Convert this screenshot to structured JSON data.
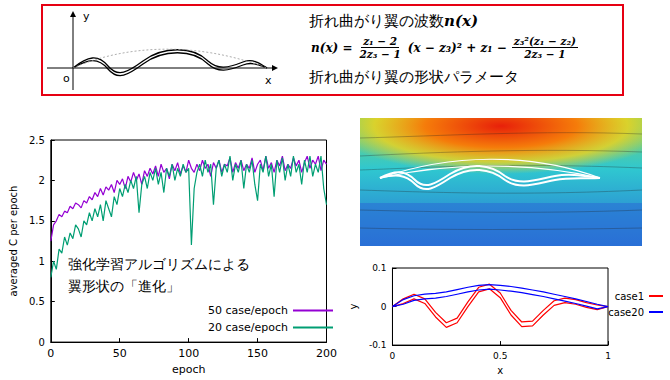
{
  "header_box": {
    "sketch": {
      "y_label": "y",
      "x_label": "x",
      "origin_label": "o"
    },
    "heading": "折れ曲がり翼の波数",
    "heading_symbol": "n(x)",
    "formula": {
      "lhs": "n(x) =",
      "parts": [
        {
          "num": "z₁ − 2",
          "den": "2z₃ − 1"
        },
        {
          "text": "(x − z₃)² + z₁ −"
        },
        {
          "num": "z₃²(z₁ − z₂)",
          "den": "2z₃ − 1"
        }
      ]
    },
    "caption": "折れ曲がり翼の形状パラメータ"
  },
  "chart_data": [
    {
      "type": "line",
      "x_label": "epoch",
      "y_label": "averaged C per epoch",
      "annotation": [
        "強化学習アルゴリズムによる",
        "翼形状の「進化」"
      ],
      "x": [
        0,
        2,
        4,
        6,
        8,
        10,
        12,
        14,
        16,
        18,
        20,
        22,
        24,
        26,
        28,
        30,
        32,
        34,
        36,
        38,
        40,
        42,
        44,
        46,
        48,
        50,
        52,
        54,
        56,
        58,
        60,
        62,
        64,
        66,
        68,
        70,
        72,
        74,
        76,
        78,
        80,
        82,
        84,
        86,
        88,
        90,
        92,
        94,
        96,
        98,
        100,
        102,
        104,
        106,
        108,
        110,
        112,
        114,
        116,
        118,
        120,
        122,
        124,
        126,
        128,
        130,
        132,
        134,
        136,
        138,
        140,
        142,
        144,
        146,
        148,
        150,
        152,
        154,
        156,
        158,
        160,
        162,
        164,
        166,
        168,
        170,
        172,
        174,
        176,
        178,
        180,
        182,
        184,
        186,
        188,
        190,
        192,
        194,
        196,
        198,
        200
      ],
      "series": [
        {
          "name": "50 case/epoch",
          "color": "#9400d3",
          "values": [
            1.25,
            1.45,
            1.5,
            1.58,
            1.55,
            1.62,
            1.6,
            1.68,
            1.65,
            1.72,
            1.7,
            1.66,
            1.75,
            1.72,
            1.8,
            1.76,
            1.85,
            1.8,
            1.9,
            1.82,
            1.92,
            1.88,
            1.95,
            1.85,
            2.0,
            1.95,
            2.02,
            1.9,
            2.05,
            1.98,
            2.1,
            2.0,
            2.08,
            1.95,
            2.12,
            2.05,
            2.15,
            2.08,
            2.18,
            2.05,
            2.2,
            2.1,
            2.15,
            2.02,
            2.2,
            2.12,
            2.22,
            2.08,
            2.18,
            2.1,
            2.25,
            2.15,
            2.1,
            2.2,
            2.12,
            2.25,
            2.15,
            2.2,
            2.05,
            2.22,
            2.15,
            2.25,
            2.1,
            2.2,
            2.18,
            2.28,
            2.1,
            2.22,
            2.15,
            2.25,
            2.12,
            2.2,
            2.15,
            2.28,
            2.1,
            2.2,
            2.25,
            2.12,
            2.3,
            2.15,
            2.22,
            2.1,
            2.25,
            2.18,
            2.3,
            2.12,
            2.2,
            2.15,
            2.28,
            2.18,
            2.25,
            2.1,
            2.22,
            2.3,
            2.15,
            2.25,
            2.2,
            2.3,
            2.12,
            2.25,
            2.2
          ]
        },
        {
          "name": "20 case/epoch",
          "color": "#009e73",
          "values": [
            0.8,
            1.0,
            0.9,
            1.15,
            1.1,
            1.3,
            1.2,
            1.35,
            1.28,
            1.45,
            1.4,
            1.3,
            1.5,
            1.45,
            1.6,
            1.5,
            1.65,
            1.55,
            1.7,
            1.5,
            1.75,
            1.65,
            1.55,
            1.8,
            1.7,
            1.9,
            1.8,
            1.95,
            1.85,
            2.0,
            1.9,
            2.05,
            1.6,
            1.95,
            2.05,
            1.9,
            2.1,
            2.0,
            2.15,
            1.95,
            2.1,
            1.85,
            2.15,
            2.05,
            2.2,
            2.0,
            2.15,
            2.05,
            2.2,
            2.1,
            2.15,
            1.2,
            1.9,
            2.1,
            2.2,
            2.05,
            2.25,
            2.1,
            2.2,
            1.7,
            2.15,
            2.25,
            2.05,
            2.2,
            2.1,
            2.3,
            2.0,
            2.2,
            2.1,
            2.25,
            1.9,
            2.2,
            2.1,
            2.25,
            1.95,
            1.75,
            2.2,
            2.1,
            2.3,
            2.05,
            2.2,
            1.8,
            2.25,
            2.1,
            2.28,
            2.0,
            2.2,
            2.05,
            2.3,
            2.1,
            2.2,
            1.95,
            2.25,
            2.1,
            2.3,
            2.05,
            2.2,
            2.1,
            2.3,
            1.9,
            1.7
          ]
        }
      ],
      "xlim": [
        0,
        200
      ],
      "xticks": [
        0,
        50,
        100,
        150,
        200
      ],
      "ylim": [
        0,
        2.5
      ],
      "yticks": [
        0,
        0.5,
        1,
        1.5,
        2,
        2.5
      ],
      "grid": false,
      "legend": "lower right"
    },
    {
      "type": "line",
      "x_label": "x",
      "y_label": "y",
      "series": [
        {
          "name": "case1",
          "color": "#ff0000",
          "x": [
            0,
            0.05,
            0.1,
            0.15,
            0.2,
            0.25,
            0.3,
            0.35,
            0.4,
            0.45,
            0.5,
            0.55,
            0.6,
            0.65,
            0.7,
            0.75,
            0.8,
            0.85,
            0.9,
            0.95,
            1,
            0.95,
            0.9,
            0.85,
            0.8,
            0.75,
            0.7,
            0.65,
            0.6,
            0.55,
            0.5,
            0.45,
            0.4,
            0.35,
            0.3,
            0.25,
            0.2,
            0.15,
            0.1,
            0.05,
            0
          ],
          "values": [
            0,
            0.02,
            0.032,
            0.02,
            -0.015,
            -0.042,
            -0.03,
            0.012,
            0.05,
            0.058,
            0.035,
            -0.01,
            -0.04,
            -0.038,
            -0.01,
            0.015,
            0.022,
            0.018,
            0.01,
            0.004,
            0,
            -0.008,
            -0.002,
            0.006,
            0.01,
            0.003,
            -0.022,
            -0.05,
            -0.052,
            -0.022,
            0.023,
            0.046,
            0.038,
            0,
            -0.042,
            -0.054,
            -0.027,
            0.008,
            0.02,
            0.008,
            0
          ]
        },
        {
          "name": "case20",
          "color": "#0000ff",
          "x": [
            0,
            0.05,
            0.1,
            0.15,
            0.2,
            0.25,
            0.3,
            0.35,
            0.4,
            0.45,
            0.5,
            0.55,
            0.6,
            0.65,
            0.7,
            0.75,
            0.8,
            0.85,
            0.9,
            0.95,
            1,
            0.95,
            0.9,
            0.85,
            0.8,
            0.75,
            0.7,
            0.65,
            0.6,
            0.55,
            0.5,
            0.45,
            0.4,
            0.35,
            0.3,
            0.25,
            0.2,
            0.15,
            0.1,
            0.05,
            0
          ],
          "values": [
            0,
            0.018,
            0.028,
            0.032,
            0.034,
            0.038,
            0.044,
            0.05,
            0.055,
            0.057,
            0.055,
            0.052,
            0.048,
            0.043,
            0.038,
            0.032,
            0.026,
            0.02,
            0.013,
            0.006,
            0,
            -0.006,
            0.001,
            0.008,
            0.014,
            0.02,
            0.026,
            0.031,
            0.036,
            0.04,
            0.043,
            0.045,
            0.043,
            0.038,
            0.032,
            0.026,
            0.022,
            0.02,
            0.016,
            0.006,
            0
          ]
        }
      ],
      "xlim": [
        0,
        1
      ],
      "xticks": [
        0,
        0.5,
        1
      ],
      "ylim": [
        -0.1,
        0.1
      ],
      "yticks": [
        -0.1,
        0,
        0.1
      ],
      "grid": false,
      "legend": "right"
    }
  ]
}
